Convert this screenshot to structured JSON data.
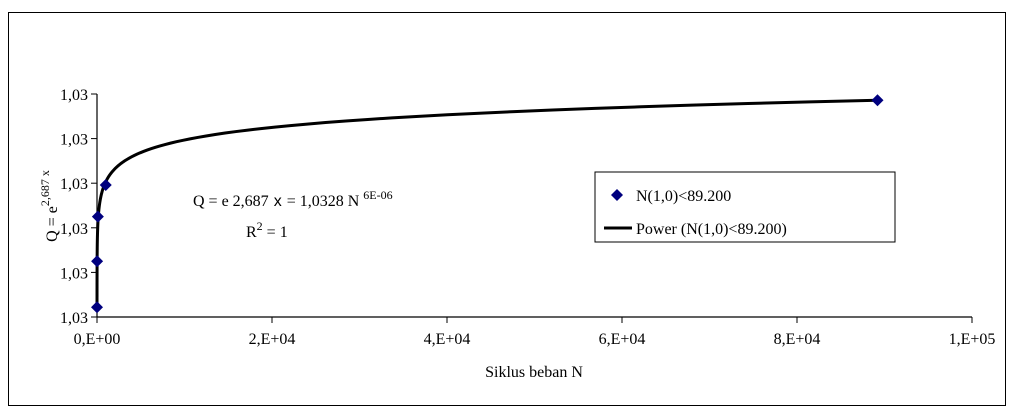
{
  "chart_data": {
    "type": "scatter",
    "xlabel": "Siklus beban N",
    "ylabel": {
      "main": "Q = e",
      "superscript": "2,687 x"
    },
    "x_ticks": [
      "0,E+00",
      "2,E+04",
      "4,E+04",
      "6,E+04",
      "8,E+04",
      "1,E+05"
    ],
    "x_tick_values": [
      0,
      20000,
      40000,
      60000,
      80000,
      100000
    ],
    "y_ticks": [
      "1,03",
      "1,03",
      "1,03",
      "1,03",
      "1,03",
      "1,03"
    ],
    "y_tick_positions": [
      0,
      1,
      2,
      3,
      4,
      5
    ],
    "xlim": [
      0,
      100000
    ],
    "ylim": [
      0,
      5
    ],
    "grid": false,
    "legend_position": "right",
    "series": [
      {
        "name": "N(1,0)<89.200",
        "kind": "markers",
        "color": "#00007f",
        "marker": "diamond",
        "x": [
          1,
          10,
          100,
          1000,
          89200
        ],
        "y": [
          0.22,
          1.25,
          2.25,
          2.96,
          4.86
        ]
      },
      {
        "name": "Power (N(1,0)<89.200)",
        "kind": "line",
        "color": "#000000",
        "model": "power",
        "x_start": 1,
        "x_end": 89200,
        "y_at_start": 0.22,
        "y_at_end": 4.86
      }
    ],
    "annotations": {
      "equation": {
        "left": "Q = e 2,687",
        "var": "x",
        "mid": "= 1,0328 N",
        "superscript": "6E-06"
      },
      "r_squared": {
        "base": "R",
        "superscript": "2",
        "rest": "= 1"
      }
    }
  }
}
